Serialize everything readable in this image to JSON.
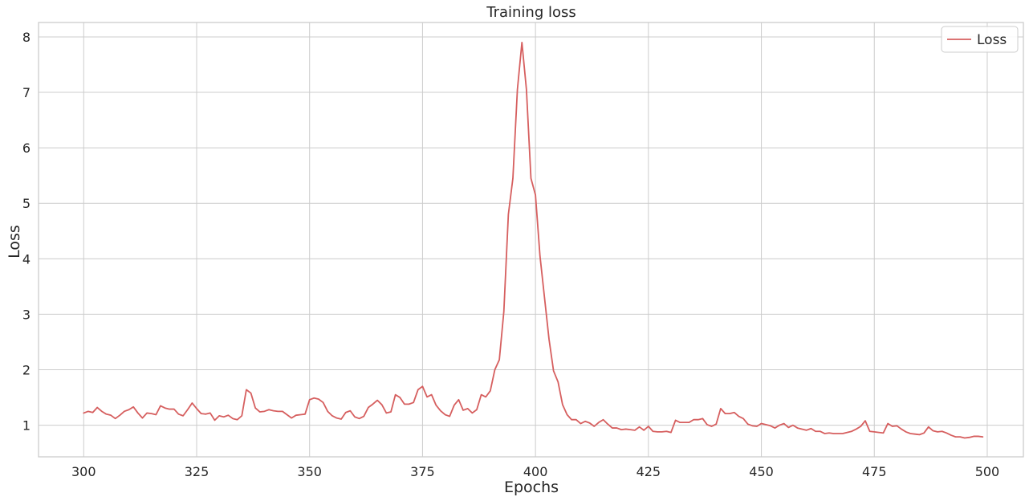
{
  "chart_data": {
    "type": "line",
    "title": "Training loss",
    "xlabel": "Epochs",
    "ylabel": "Loss",
    "xlim": [
      290,
      508
    ],
    "ylim": [
      0.43,
      8.26
    ],
    "xticks": [
      300,
      325,
      350,
      375,
      400,
      425,
      450,
      475,
      500
    ],
    "yticks": [
      1,
      2,
      3,
      4,
      5,
      6,
      7,
      8
    ],
    "grid": true,
    "legend": {
      "position": "top-right"
    },
    "series": [
      {
        "name": "Loss",
        "color": "#d65f5f",
        "x_start": 300,
        "x_step": 1,
        "values": [
          1.22,
          1.25,
          1.23,
          1.32,
          1.25,
          1.2,
          1.18,
          1.12,
          1.18,
          1.25,
          1.28,
          1.33,
          1.22,
          1.13,
          1.22,
          1.21,
          1.19,
          1.35,
          1.31,
          1.29,
          1.29,
          1.2,
          1.17,
          1.28,
          1.4,
          1.3,
          1.21,
          1.2,
          1.22,
          1.09,
          1.17,
          1.15,
          1.18,
          1.12,
          1.1,
          1.17,
          1.64,
          1.58,
          1.31,
          1.24,
          1.25,
          1.28,
          1.26,
          1.25,
          1.25,
          1.19,
          1.13,
          1.18,
          1.19,
          1.2,
          1.46,
          1.49,
          1.47,
          1.41,
          1.25,
          1.17,
          1.13,
          1.11,
          1.23,
          1.26,
          1.15,
          1.12,
          1.16,
          1.32,
          1.38,
          1.45,
          1.37,
          1.22,
          1.24,
          1.55,
          1.5,
          1.38,
          1.38,
          1.41,
          1.64,
          1.7,
          1.51,
          1.55,
          1.36,
          1.26,
          1.19,
          1.16,
          1.36,
          1.46,
          1.27,
          1.3,
          1.22,
          1.28,
          1.55,
          1.51,
          1.62,
          2.0,
          2.18,
          3.05,
          4.8,
          5.45,
          7.05,
          7.9,
          7.05,
          5.45,
          5.15,
          4.05,
          3.3,
          2.55,
          1.98,
          1.78,
          1.37,
          1.19,
          1.1,
          1.1,
          1.03,
          1.07,
          1.04,
          0.98,
          1.05,
          1.1,
          1.02,
          0.95,
          0.95,
          0.92,
          0.93,
          0.92,
          0.91,
          0.97,
          0.91,
          0.98,
          0.89,
          0.88,
          0.88,
          0.89,
          0.87,
          1.09,
          1.05,
          1.05,
          1.05,
          1.1,
          1.1,
          1.12,
          1.01,
          0.98,
          1.02,
          1.3,
          1.21,
          1.21,
          1.23,
          1.16,
          1.12,
          1.02,
          0.99,
          0.98,
          1.03,
          1.01,
          0.99,
          0.95,
          1.0,
          1.03,
          0.96,
          1.0,
          0.95,
          0.93,
          0.91,
          0.94,
          0.89,
          0.89,
          0.85,
          0.86,
          0.85,
          0.85,
          0.85,
          0.87,
          0.89,
          0.93,
          0.98,
          1.08,
          0.89,
          0.88,
          0.87,
          0.86,
          1.03,
          0.98,
          0.99,
          0.93,
          0.88,
          0.85,
          0.84,
          0.83,
          0.86,
          0.97,
          0.9,
          0.88,
          0.89,
          0.86,
          0.82,
          0.79,
          0.79,
          0.77,
          0.78,
          0.8,
          0.8,
          0.79
        ]
      }
    ]
  }
}
